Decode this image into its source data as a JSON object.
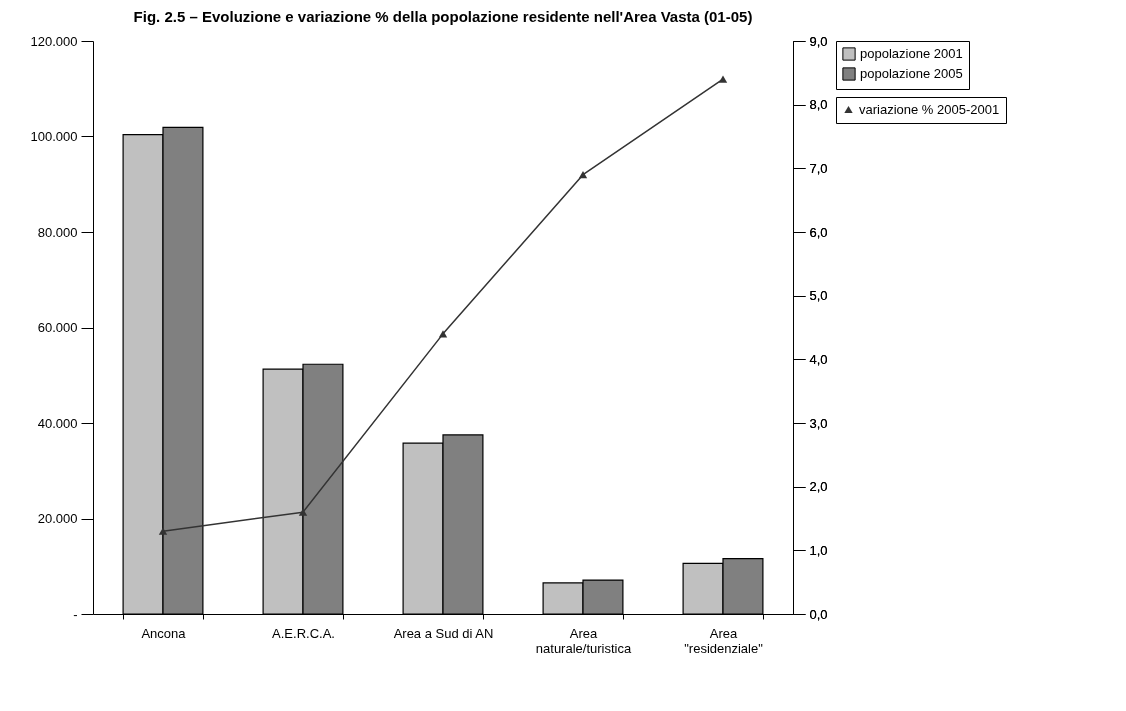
{
  "chart_data": {
    "type": "bar",
    "title": "Fig. 2.5 – Evoluzione e variazione % della popolazione residente nell'Area Vasta (01-05)",
    "categories": [
      "Ancona",
      "A.E.R.C.A.",
      "Area a Sud di AN",
      "Area\nnaturale/turistica",
      "Area\n\"residenziale\""
    ],
    "series": [
      {
        "name": "popolazione 2001",
        "color": "#c0c0c0",
        "values": [
          100400,
          51300,
          35800,
          6500,
          10600
        ]
      },
      {
        "name": "popolazione 2005",
        "color": "#808080",
        "values": [
          101900,
          52300,
          37500,
          7100,
          11600
        ]
      },
      {
        "name": "variazione % 2005-2001",
        "type": "line",
        "axis": "y2",
        "color": "#333333",
        "marker": "triangle",
        "values": [
          1.3,
          1.6,
          4.4,
          6.9,
          8.4
        ]
      }
    ],
    "ylim": [
      0,
      120000
    ],
    "yticks": [
      {
        "value": 0,
        "label": "-"
      },
      {
        "value": 20000,
        "label": "20.000"
      },
      {
        "value": 40000,
        "label": "40.000"
      },
      {
        "value": 60000,
        "label": "60.000"
      },
      {
        "value": 80000,
        "label": "80.000"
      },
      {
        "value": 100000,
        "label": "100.000"
      },
      {
        "value": 120000,
        "label": "120.000"
      }
    ],
    "y2lim": [
      0,
      9
    ],
    "y2ticks": [
      {
        "value": 0,
        "label": "0,0"
      },
      {
        "value": 1,
        "label": "1,0"
      },
      {
        "value": 2,
        "label": "2,0"
      },
      {
        "value": 3,
        "label": "3,0"
      },
      {
        "value": 4,
        "label": "4,0"
      },
      {
        "value": 5,
        "label": "5,0"
      },
      {
        "value": 6,
        "label": "6,0"
      },
      {
        "value": 7,
        "label": "7,0"
      },
      {
        "value": 8,
        "label": "8,0"
      },
      {
        "value": 9,
        "label": "9,0"
      }
    ],
    "grid": false,
    "legend": "right"
  }
}
